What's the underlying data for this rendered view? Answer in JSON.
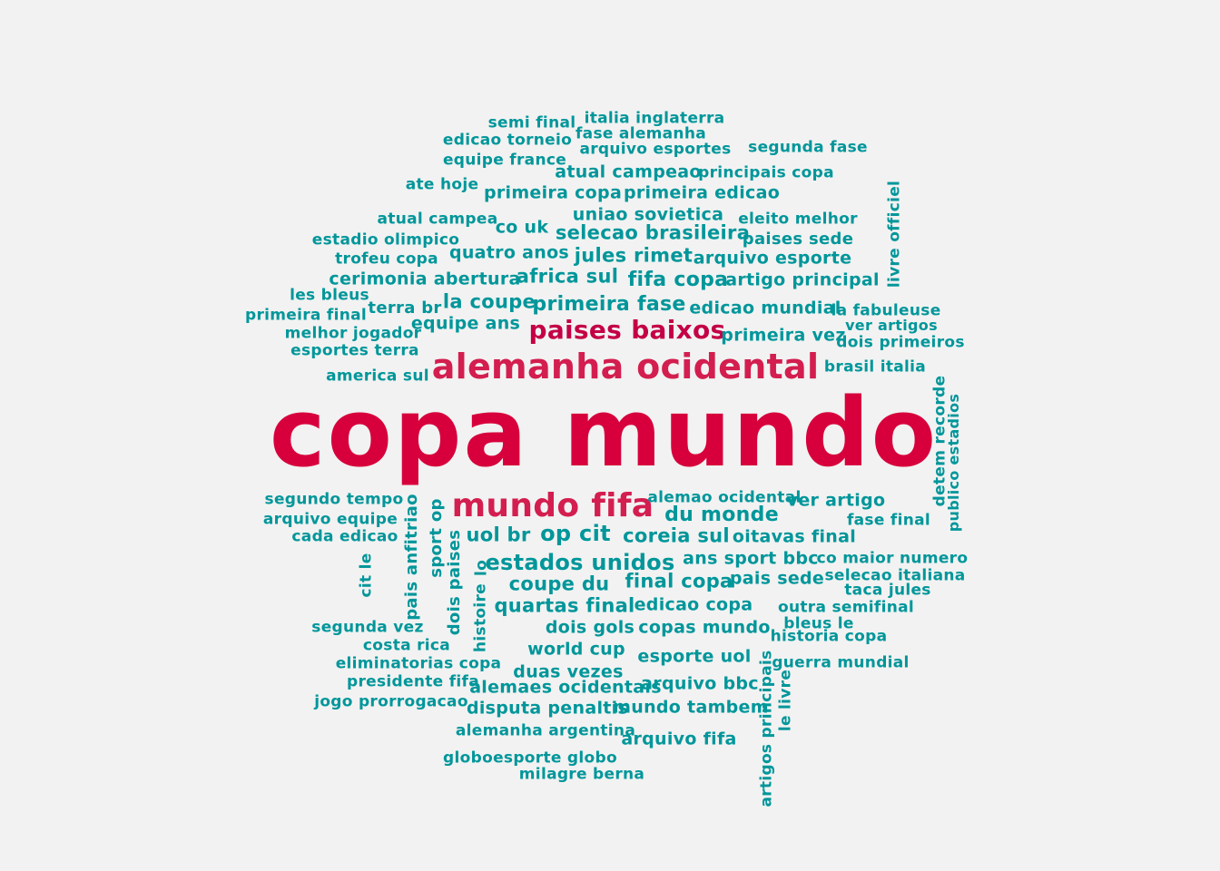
{
  "colors": {
    "background": "#f2f2f2",
    "primary": "#d7003c",
    "secondary": "#d31e4f",
    "tertiary": "#c40045",
    "minor": "#00969a"
  },
  "words": [
    {
      "text": "copa mundo",
      "level": "primary"
    },
    {
      "text": "alemanha ocidental",
      "level": "secondary"
    },
    {
      "text": "mundo fifa",
      "level": "secondary"
    },
    {
      "text": "paises baixos",
      "level": "tertiary"
    },
    {
      "text": "semi final",
      "level": "minor"
    },
    {
      "text": "italia inglaterra",
      "level": "minor"
    },
    {
      "text": "fase alemanha",
      "level": "minor"
    },
    {
      "text": "edicao torneio",
      "level": "minor"
    },
    {
      "text": "arquivo esportes",
      "level": "minor"
    },
    {
      "text": "segunda fase",
      "level": "minor"
    },
    {
      "text": "equipe france",
      "level": "minor"
    },
    {
      "text": "atual campeao",
      "level": "minor"
    },
    {
      "text": "principais copa",
      "level": "minor"
    },
    {
      "text": "ate hoje",
      "level": "minor"
    },
    {
      "text": "primeira copa",
      "level": "minor"
    },
    {
      "text": "primeira edicao",
      "level": "minor"
    },
    {
      "text": "atual campea",
      "level": "minor"
    },
    {
      "text": "co uk",
      "level": "minor"
    },
    {
      "text": "uniao sovietica",
      "level": "minor"
    },
    {
      "text": "eleito melhor",
      "level": "minor"
    },
    {
      "text": "livre officiel",
      "level": "minor"
    },
    {
      "text": "estadio olimpico",
      "level": "minor"
    },
    {
      "text": "selecao brasileira",
      "level": "minor"
    },
    {
      "text": "paises sede",
      "level": "minor"
    },
    {
      "text": "trofeu copa",
      "level": "minor"
    },
    {
      "text": "quatro anos",
      "level": "minor"
    },
    {
      "text": "jules rimet",
      "level": "minor"
    },
    {
      "text": "arquivo esporte",
      "level": "minor"
    },
    {
      "text": "cerimonia abertura",
      "level": "minor"
    },
    {
      "text": "africa sul",
      "level": "minor"
    },
    {
      "text": "fifa copa",
      "level": "minor"
    },
    {
      "text": "artigo principal",
      "level": "minor"
    },
    {
      "text": "les bleus",
      "level": "minor"
    },
    {
      "text": "terra br",
      "level": "minor"
    },
    {
      "text": "la coupe",
      "level": "minor"
    },
    {
      "text": "primeira fase",
      "level": "minor"
    },
    {
      "text": "edicao mundial",
      "level": "minor"
    },
    {
      "text": "la fabuleuse",
      "level": "minor"
    },
    {
      "text": "primeira final",
      "level": "minor"
    },
    {
      "text": "equipe ans",
      "level": "minor"
    },
    {
      "text": "ver artigos",
      "level": "minor"
    },
    {
      "text": "melhor jogador",
      "level": "minor"
    },
    {
      "text": "primeira vez",
      "level": "minor"
    },
    {
      "text": "dois primeiros",
      "level": "minor"
    },
    {
      "text": "esportes terra",
      "level": "minor"
    },
    {
      "text": "america sul",
      "level": "minor"
    },
    {
      "text": "brasil italia",
      "level": "minor"
    },
    {
      "text": "detem recorde",
      "level": "minor"
    },
    {
      "text": "publico estadios",
      "level": "minor"
    },
    {
      "text": "segundo tempo",
      "level": "minor"
    },
    {
      "text": "pais anfitriao",
      "level": "minor"
    },
    {
      "text": "sport op",
      "level": "minor"
    },
    {
      "text": "alemao ocidental",
      "level": "minor"
    },
    {
      "text": "ver artigo",
      "level": "minor"
    },
    {
      "text": "arquivo equipe",
      "level": "minor"
    },
    {
      "text": "du monde",
      "level": "minor"
    },
    {
      "text": "fase final",
      "level": "minor"
    },
    {
      "text": "cada edicao",
      "level": "minor"
    },
    {
      "text": "uol br",
      "level": "minor"
    },
    {
      "text": "op cit",
      "level": "minor"
    },
    {
      "text": "coreia sul",
      "level": "minor"
    },
    {
      "text": "oitavas final",
      "level": "minor"
    },
    {
      "text": "dois paises",
      "level": "minor"
    },
    {
      "text": "lo",
      "level": "minor"
    },
    {
      "text": "estados unidos",
      "level": "minor"
    },
    {
      "text": "ans sport bbc",
      "level": "minor"
    },
    {
      "text": "co maior numero",
      "level": "minor"
    },
    {
      "text": "cit le",
      "level": "minor"
    },
    {
      "text": "coupe du",
      "level": "minor"
    },
    {
      "text": "final copa",
      "level": "minor"
    },
    {
      "text": "pais sede",
      "level": "minor"
    },
    {
      "text": "selecao italiana",
      "level": "minor"
    },
    {
      "text": "taca jules",
      "level": "minor"
    },
    {
      "text": "histoire",
      "level": "minor"
    },
    {
      "text": "quartas final",
      "level": "minor"
    },
    {
      "text": "edicao copa",
      "level": "minor"
    },
    {
      "text": "outra semifinal",
      "level": "minor"
    },
    {
      "text": "segunda vez",
      "level": "minor"
    },
    {
      "text": "dois gols",
      "level": "minor"
    },
    {
      "text": "copas mundo",
      "level": "minor"
    },
    {
      "text": "bleus le",
      "level": "minor"
    },
    {
      "text": "historia copa",
      "level": "minor"
    },
    {
      "text": "costa rica",
      "level": "minor"
    },
    {
      "text": "world cup",
      "level": "minor"
    },
    {
      "text": "esporte uol",
      "level": "minor"
    },
    {
      "text": "guerra mundial",
      "level": "minor"
    },
    {
      "text": "eliminatorias copa",
      "level": "minor"
    },
    {
      "text": "duas vezes",
      "level": "minor"
    },
    {
      "text": "artigos principais",
      "level": "minor"
    },
    {
      "text": "presidente fifa",
      "level": "minor"
    },
    {
      "text": "alemaes ocidentais",
      "level": "minor"
    },
    {
      "text": "arquivo bbc",
      "level": "minor"
    },
    {
      "text": "le livre",
      "level": "minor"
    },
    {
      "text": "jogo prorrogacao",
      "level": "minor"
    },
    {
      "text": "disputa penaltis",
      "level": "minor"
    },
    {
      "text": "mundo tambem",
      "level": "minor"
    },
    {
      "text": "alemanha argentina",
      "level": "minor"
    },
    {
      "text": "arquivo fifa",
      "level": "minor"
    },
    {
      "text": "globoesporte globo",
      "level": "minor"
    },
    {
      "text": "milagre berna",
      "level": "minor"
    }
  ]
}
